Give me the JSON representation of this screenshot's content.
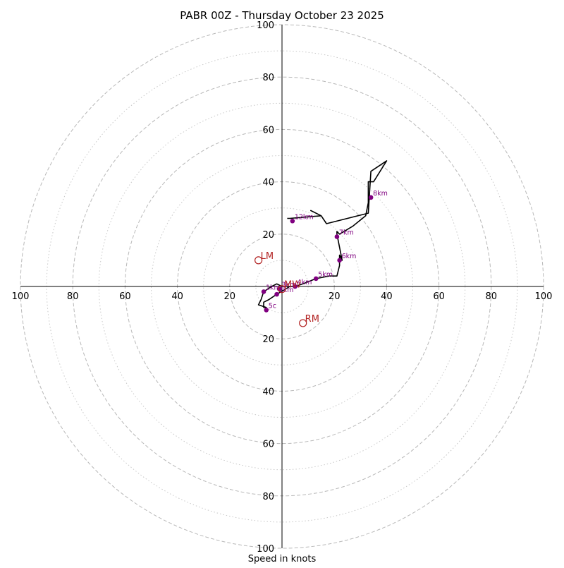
{
  "chart_data": {
    "type": "hodograph",
    "title": "PABR 00Z - Thursday October 23 2025",
    "xlabel": "Speed in knots",
    "range_knots": [
      -100,
      100
    ],
    "ring_major_knots": [
      20,
      40,
      60,
      80,
      100
    ],
    "ring_minor_knots": [
      10,
      30,
      50,
      70,
      90
    ],
    "tick_labels": {
      "left": [
        "100",
        "80",
        "60",
        "40",
        "20"
      ],
      "right": [
        "20",
        "40",
        "60",
        "80",
        "100"
      ],
      "top": [
        "100",
        "80",
        "60",
        "40",
        "20"
      ],
      "bottom": [
        "20",
        "40",
        "60",
        "80",
        "100"
      ]
    },
    "tick_values": {
      "left": [
        -100,
        -80,
        -60,
        -40,
        -20
      ],
      "right": [
        20,
        40,
        60,
        80,
        100
      ],
      "top": [
        100,
        80,
        60,
        40,
        20
      ],
      "bottom": [
        -20,
        -40,
        -60,
        -80,
        -100
      ]
    },
    "trace": {
      "color": "#000000",
      "u": [
        0,
        5,
        3,
        -2,
        -5,
        -7,
        -7,
        -6,
        -9,
        -8,
        -7,
        -4,
        -2,
        0,
        2,
        4,
        5,
        8,
        13,
        18,
        21,
        22,
        22,
        23,
        21,
        21,
        22,
        27,
        32,
        33,
        33,
        35,
        40,
        34,
        33,
        17,
        15,
        11,
        15,
        3,
        2
      ],
      "v": [
        0,
        0,
        0,
        -3,
        -5,
        -6,
        -8,
        -8,
        -7,
        -5,
        -2,
        0,
        1,
        0,
        0,
        0,
        0,
        1,
        3,
        4,
        4,
        8,
        12,
        10,
        20,
        21,
        20,
        23,
        27,
        32,
        40,
        40,
        48,
        44,
        28,
        24,
        27,
        29,
        27,
        26,
        26
      ]
    },
    "height_markers": {
      "color": "#800080",
      "points": [
        {
          "label": "1km",
          "u": -7,
          "v": -2
        },
        {
          "label": "2km",
          "u": -2,
          "v": -3
        },
        {
          "label": "3km",
          "u": -1,
          "v": -1
        },
        {
          "label": "4km",
          "u": 5,
          "v": 0
        },
        {
          "label": "5km",
          "u": 13,
          "v": 3
        },
        {
          "label": "6km",
          "u": 22,
          "v": 10
        },
        {
          "label": "7km",
          "u": 21,
          "v": 19
        },
        {
          "label": "8km",
          "u": 34,
          "v": 34
        },
        {
          "label": "12km",
          "u": 4,
          "v": 25
        },
        {
          "label": "5c",
          "u": -6,
          "v": -9
        }
      ]
    },
    "storm_motion": {
      "color": "#b22222",
      "points": [
        {
          "label": "LM",
          "u": -9,
          "v": 10
        },
        {
          "label": "RM",
          "u": 8,
          "v": -14
        },
        {
          "label": "MW",
          "u": 0,
          "v": -1
        }
      ]
    }
  }
}
